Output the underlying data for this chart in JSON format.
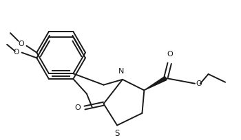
{
  "bg_color": "#ffffff",
  "line_color": "#1a1a1a",
  "lw": 1.4,
  "figsize": [
    3.5,
    2.04
  ],
  "dpi": 100,
  "xlim": [
    0,
    350
  ],
  "ylim": [
    0,
    204
  ]
}
